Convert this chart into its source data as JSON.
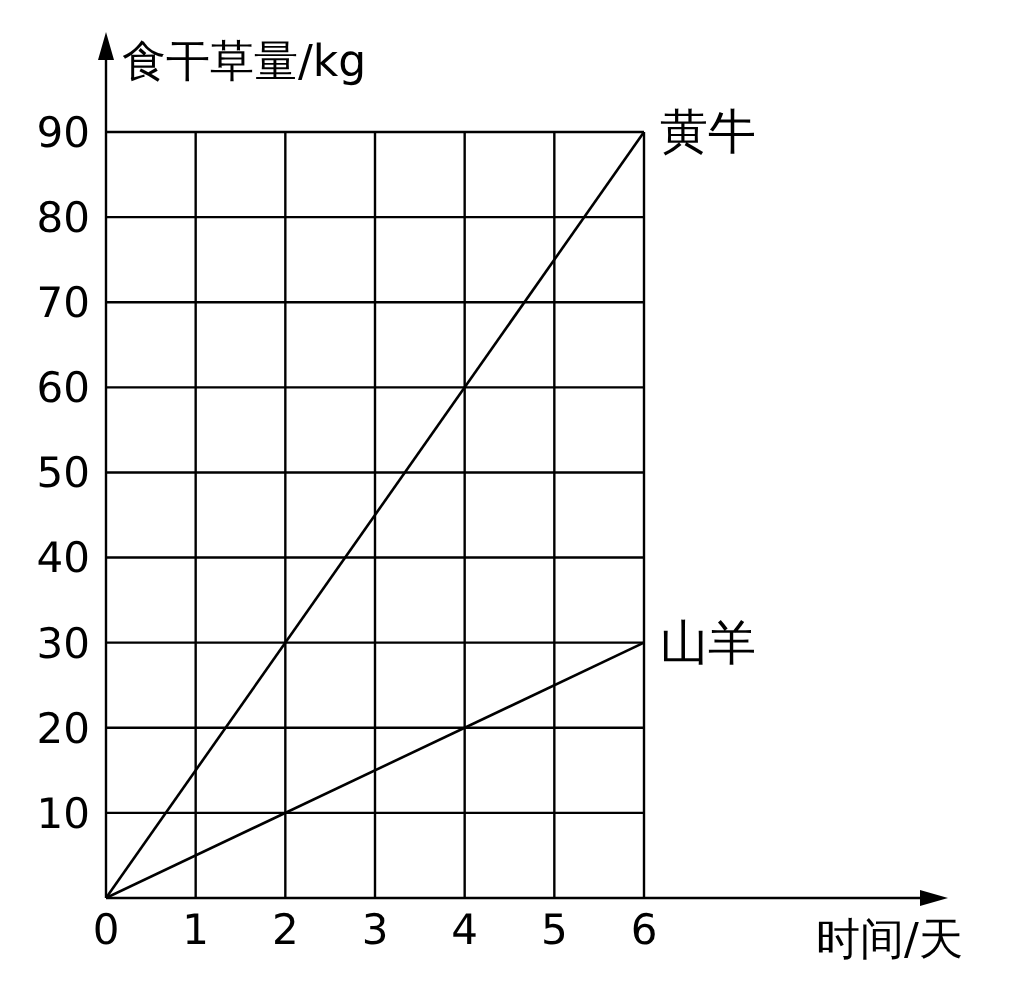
{
  "chart_data": {
    "type": "line",
    "xlabel": "时间/天",
    "ylabel": "食干草量/kg",
    "x": [
      0,
      6
    ],
    "xlim": [
      0,
      6
    ],
    "xticks": [
      0,
      1,
      2,
      3,
      4,
      5,
      6
    ],
    "ylim": [
      0,
      90
    ],
    "yticks": [
      {
        "value": 0,
        "label": null
      },
      10,
      20,
      30,
      40,
      50,
      60,
      70,
      80,
      90
    ],
    "grid": true,
    "marker": "none",
    "line_style": "solid",
    "series": [
      {
        "name": "黄牛",
        "color": "#000000",
        "values": [
          0,
          90
        ]
      },
      {
        "name": "山羊",
        "color": "#000000",
        "values": [
          0,
          30
        ]
      }
    ]
  }
}
